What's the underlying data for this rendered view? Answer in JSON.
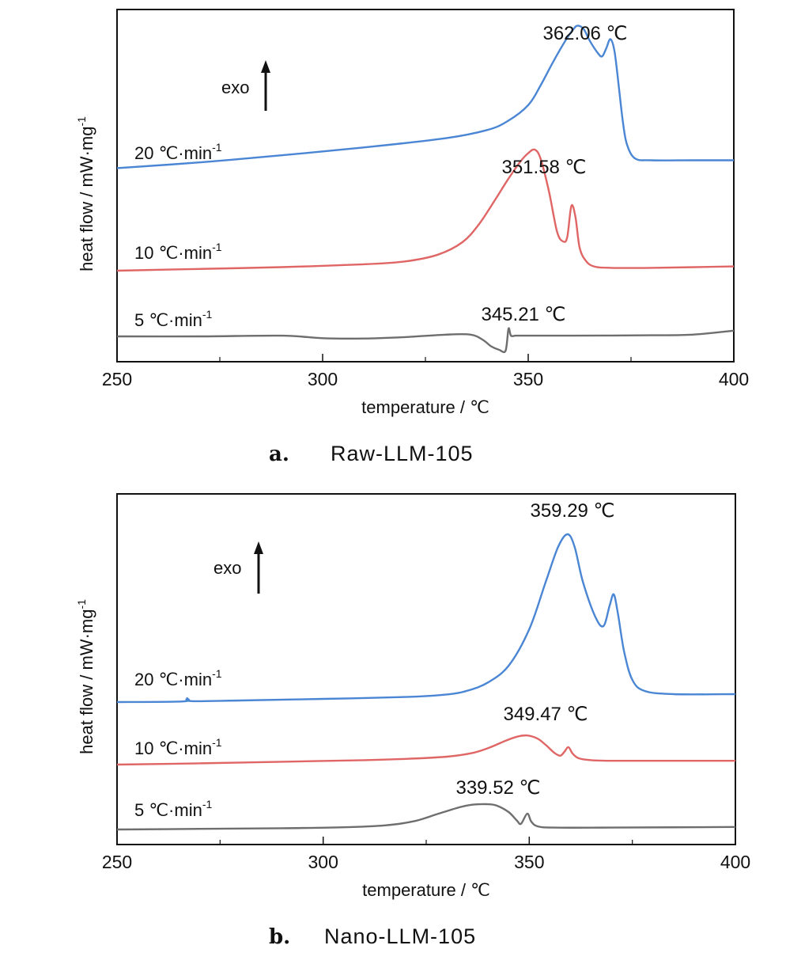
{
  "chart_data": [
    {
      "type": "line",
      "panel": "a.",
      "caption": "Raw-LLM-105",
      "xlabel": "temperature / ℃",
      "ylabel": "heat flow / mW·mg",
      "ylabel_sup": "-1",
      "xlim": [
        250,
        400
      ],
      "xticks": [
        250,
        300,
        350,
        400
      ],
      "exo_label": "exo",
      "series": [
        {
          "rate": "20 ℃·min",
          "sup": "-1",
          "color": "#4a86d4",
          "peak_label": "362.06 ℃",
          "x": [
            250,
            270,
            290,
            310,
            330,
            340,
            345,
            350,
            353,
            356,
            359,
            361,
            362.06,
            363.5,
            365,
            367,
            368,
            369,
            370,
            371,
            372,
            373,
            374,
            376,
            380,
            390,
            400
          ],
          "y": [
            0.08,
            0.24,
            0.44,
            0.66,
            0.92,
            1.15,
            1.4,
            1.85,
            2.4,
            3.05,
            3.65,
            3.98,
            4.08,
            3.98,
            3.65,
            3.3,
            3.22,
            3.45,
            3.7,
            3.35,
            2.4,
            1.4,
            0.75,
            0.35,
            0.3,
            0.3,
            0.3
          ]
        },
        {
          "rate": "10 ℃·min",
          "sup": "-1",
          "color": "#e06666",
          "peak_label": "351.58 ℃",
          "x": [
            250,
            270,
            290,
            310,
            320,
            328,
            334,
            338,
            342,
            345,
            348,
            350,
            351.58,
            353,
            355,
            357,
            358.5,
            359.5,
            360.5,
            361.5,
            362.5,
            364,
            366,
            370,
            380,
            400
          ],
          "y": [
            0.0,
            0.05,
            0.1,
            0.18,
            0.26,
            0.45,
            0.8,
            1.3,
            2.0,
            2.55,
            3.05,
            3.3,
            3.4,
            3.15,
            2.25,
            1.1,
            0.82,
            0.95,
            1.82,
            1.5,
            0.65,
            0.28,
            0.12,
            0.08,
            0.08,
            0.12
          ]
        },
        {
          "rate": "5 ℃·min",
          "sup": "-1",
          "color": "#6e6e6e",
          "peak_label": "345.21 ℃",
          "x": [
            250,
            270,
            290,
            300,
            310,
            320,
            330,
            336,
            339,
            341,
            343,
            344.5,
            345.21,
            345.8,
            347,
            350,
            360,
            380,
            390,
            400
          ],
          "y": [
            0.0,
            0.0,
            0.02,
            -0.05,
            -0.06,
            -0.02,
            0.05,
            0.05,
            -0.1,
            -0.28,
            -0.38,
            -0.4,
            0.22,
            0.02,
            0.02,
            0.02,
            0.02,
            0.03,
            0.05,
            0.16
          ]
        }
      ]
    },
    {
      "type": "line",
      "panel": "b.",
      "caption": "Nano-LLM-105",
      "xlabel": "temperature / ℃",
      "ylabel": "heat flow / mW·mg",
      "ylabel_sup": "-1",
      "xlim": [
        250,
        400
      ],
      "xticks": [
        250,
        300,
        350,
        400
      ],
      "exo_label": "exo",
      "series": [
        {
          "rate": "20 ℃·min",
          "sup": "-1",
          "color": "#4a86d4",
          "peak_label": "359.29 ℃",
          "x": [
            250,
            266,
            267,
            268,
            280,
            300,
            320,
            330,
            335,
            340,
            345,
            350,
            354,
            357,
            359.29,
            361,
            363,
            366,
            368,
            369.5,
            370.5,
            371.5,
            373,
            375,
            378,
            385,
            400
          ],
          "y": [
            0.0,
            0.02,
            0.12,
            0.03,
            0.05,
            0.1,
            0.16,
            0.24,
            0.36,
            0.62,
            1.15,
            2.3,
            3.8,
            4.9,
            5.3,
            4.9,
            3.8,
            2.7,
            2.4,
            3.05,
            3.4,
            2.8,
            1.6,
            0.7,
            0.35,
            0.25,
            0.25
          ]
        },
        {
          "rate": "10 ℃·min",
          "sup": "-1",
          "color": "#e06666",
          "peak_label": "349.47 ℃",
          "x": [
            250,
            270,
            290,
            310,
            320,
            330,
            336,
            340,
            344,
            347,
            349.47,
            352,
            354,
            356,
            357.5,
            358.5,
            359.5,
            360.5,
            362,
            365,
            370,
            380,
            400
          ],
          "y": [
            0.0,
            0.04,
            0.09,
            0.14,
            0.18,
            0.25,
            0.36,
            0.52,
            0.74,
            0.88,
            0.92,
            0.82,
            0.62,
            0.38,
            0.28,
            0.4,
            0.55,
            0.35,
            0.2,
            0.14,
            0.12,
            0.12,
            0.12
          ]
        },
        {
          "rate": "5 ℃·min",
          "sup": "-1",
          "color": "#6e6e6e",
          "peak_label": "339.52 ℃",
          "x": [
            250,
            270,
            290,
            305,
            315,
            322,
            328,
            333,
            336,
            339.52,
            342,
            345,
            347,
            348,
            349.5,
            350.5,
            352,
            356,
            370,
            400
          ],
          "y": [
            0.0,
            0.02,
            0.04,
            0.07,
            0.13,
            0.26,
            0.5,
            0.7,
            0.78,
            0.8,
            0.76,
            0.55,
            0.28,
            0.18,
            0.5,
            0.25,
            0.1,
            0.06,
            0.06,
            0.08
          ]
        }
      ]
    }
  ]
}
